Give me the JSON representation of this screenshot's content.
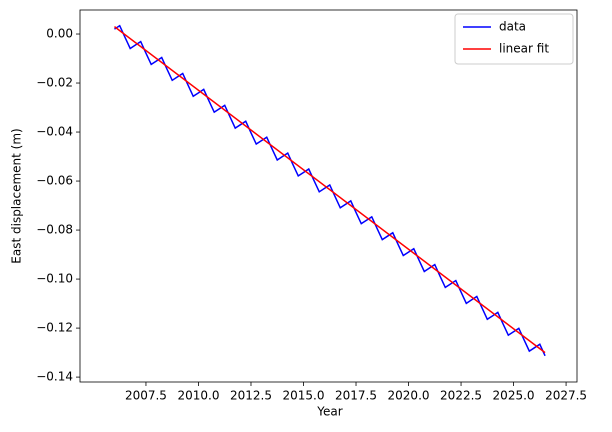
{
  "chart_data": {
    "type": "line",
    "xlabel": "Year",
    "ylabel": "East displacement (m)",
    "xlim": [
      2004.36,
      2028.02
    ],
    "ylim": [
      -0.142,
      0.0098
    ],
    "xticks": [
      2007.5,
      {
        "value": 2010,
        "label": "2010.0"
      },
      2012.5,
      {
        "value": 2015,
        "label": "2015.0"
      },
      2017.5,
      {
        "value": 2020,
        "label": "2020.0"
      },
      2022.5,
      {
        "value": 2025,
        "label": "2025.0"
      },
      2027.5
    ],
    "yticks": [
      {
        "value": 0,
        "label": "0.00"
      },
      {
        "value": -0.02,
        "label": "−0.02"
      },
      {
        "value": -0.04,
        "label": "−0.04"
      },
      {
        "value": -0.06,
        "label": "−0.06"
      },
      {
        "value": -0.08,
        "label": "−0.08"
      },
      {
        "value": -0.1,
        "label": "−0.10"
      },
      {
        "value": -0.12,
        "label": "−0.12"
      },
      {
        "value": -0.14,
        "label": "−0.14"
      }
    ],
    "legend": "upper right",
    "series": [
      {
        "name": "data",
        "color": "#0000ff",
        "x": [
          2006,
          2006.25,
          2006.5,
          2006.75,
          2007,
          2007.25,
          2007.5,
          2007.75,
          2008,
          2008.25,
          2008.5,
          2008.75,
          2009,
          2009.25,
          2009.5,
          2009.75,
          2010,
          2010.25,
          2010.5,
          2010.75,
          2011,
          2011.25,
          2011.5,
          2011.75,
          2012,
          2012.25,
          2012.5,
          2012.75,
          2013,
          2013.25,
          2013.5,
          2013.75,
          2014,
          2014.25,
          2014.5,
          2014.75,
          2015,
          2015.25,
          2015.5,
          2015.75,
          2016,
          2016.25,
          2016.5,
          2016.75,
          2017,
          2017.25,
          2017.5,
          2017.75,
          2018,
          2018.25,
          2018.5,
          2018.75,
          2019,
          2019.25,
          2019.5,
          2019.75,
          2020,
          2020.25,
          2020.5,
          2020.75,
          2021,
          2021.25,
          2021.5,
          2021.75,
          2022,
          2022.25,
          2022.5,
          2022.75,
          2023,
          2023.25,
          2023.5,
          2023.75,
          2024,
          2024.25,
          2024.5,
          2024.75,
          2025,
          2025.25,
          2025.5,
          2025.75,
          2026,
          2026.25,
          2026.5
        ],
        "values": [
          0.002,
          0.0034,
          -0.0013,
          -0.0059,
          -0.0045,
          -0.0031,
          -0.0078,
          -0.0124,
          -0.011,
          -0.0096,
          -0.0143,
          -0.0189,
          -0.0175,
          -0.0161,
          -0.0208,
          -0.0254,
          -0.024,
          -0.0226,
          -0.0273,
          -0.0319,
          -0.0305,
          -0.0291,
          -0.0338,
          -0.0384,
          -0.037,
          -0.0356,
          -0.0403,
          -0.0449,
          -0.0435,
          -0.0421,
          -0.0468,
          -0.0514,
          -0.05,
          -0.0486,
          -0.0533,
          -0.0579,
          -0.0565,
          -0.0551,
          -0.0598,
          -0.0644,
          -0.063,
          -0.0616,
          -0.0663,
          -0.0709,
          -0.0695,
          -0.0681,
          -0.0728,
          -0.0774,
          -0.076,
          -0.0746,
          -0.0793,
          -0.0839,
          -0.0825,
          -0.0811,
          -0.0858,
          -0.0904,
          -0.089,
          -0.0876,
          -0.0923,
          -0.0969,
          -0.0955,
          -0.0941,
          -0.0988,
          -0.1034,
          -0.102,
          -0.1006,
          -0.1053,
          -0.1099,
          -0.1085,
          -0.1071,
          -0.1118,
          -0.1164,
          -0.115,
          -0.1136,
          -0.1183,
          -0.1229,
          -0.1215,
          -0.1201,
          -0.1248,
          -0.1294,
          -0.128,
          -0.1266,
          -0.1313
        ]
      },
      {
        "name": "linear fit",
        "color": "#ff0000",
        "x": [
          2006,
          2026.5
        ],
        "values": [
          0.003,
          -0.13
        ]
      }
    ]
  }
}
